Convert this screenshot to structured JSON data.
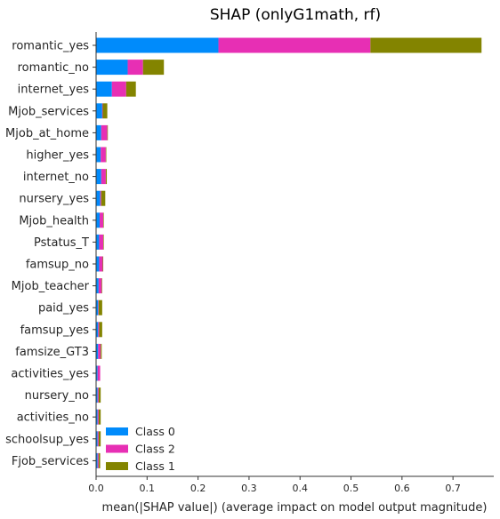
{
  "chart_data": {
    "type": "bar",
    "orientation": "horizontal",
    "stacked": true,
    "title": "SHAP (onlyG1math, rf)",
    "xlabel": "mean(|SHAP value|) (average impact on model output magnitude)",
    "ylabel": "",
    "xlim": [
      0,
      0.78
    ],
    "xticks": [
      0.0,
      0.1,
      0.2,
      0.3,
      0.4,
      0.5,
      0.6,
      0.7
    ],
    "xtick_labels": [
      "0.0",
      "0.1",
      "0.2",
      "0.3",
      "0.4",
      "0.5",
      "0.6",
      "0.7"
    ],
    "grid": false,
    "legend_position": "bottom-left",
    "categories": [
      "romantic_yes",
      "romantic_no",
      "internet_yes",
      "Mjob_services",
      "Mjob_at_home",
      "higher_yes",
      "internet_no",
      "nursery_yes",
      "Mjob_health",
      "Pstatus_T",
      "famsup_no",
      "Mjob_teacher",
      "paid_yes",
      "famsup_yes",
      "famsize_GT3",
      "activities_yes",
      "nursery_no",
      "activities_no",
      "schoolsup_yes",
      "Fjob_services"
    ],
    "series": [
      {
        "name": "Class 0",
        "color": "#008bfb",
        "values": [
          0.24,
          0.062,
          0.031,
          0.012,
          0.01,
          0.009,
          0.01,
          0.008,
          0.007,
          0.006,
          0.006,
          0.005,
          0.004,
          0.004,
          0.004,
          0.003,
          0.003,
          0.003,
          0.003,
          0.003
        ]
      },
      {
        "name": "Class 2",
        "color": "#e72fb4",
        "values": [
          0.298,
          0.03,
          0.028,
          0.001,
          0.012,
          0.01,
          0.009,
          0.002,
          0.007,
          0.008,
          0.007,
          0.006,
          0.001,
          0.002,
          0.005,
          0.005,
          0.002,
          0.002,
          0.002,
          0.002
        ]
      },
      {
        "name": "Class 1",
        "color": "#838400",
        "values": [
          0.218,
          0.041,
          0.019,
          0.009,
          0.001,
          0.001,
          0.002,
          0.008,
          0.001,
          0.001,
          0.001,
          0.001,
          0.007,
          0.006,
          0.002,
          0.0,
          0.004,
          0.004,
          0.004,
          0.003
        ]
      }
    ],
    "legend_order": [
      "Class 0",
      "Class 2",
      "Class 1"
    ]
  }
}
